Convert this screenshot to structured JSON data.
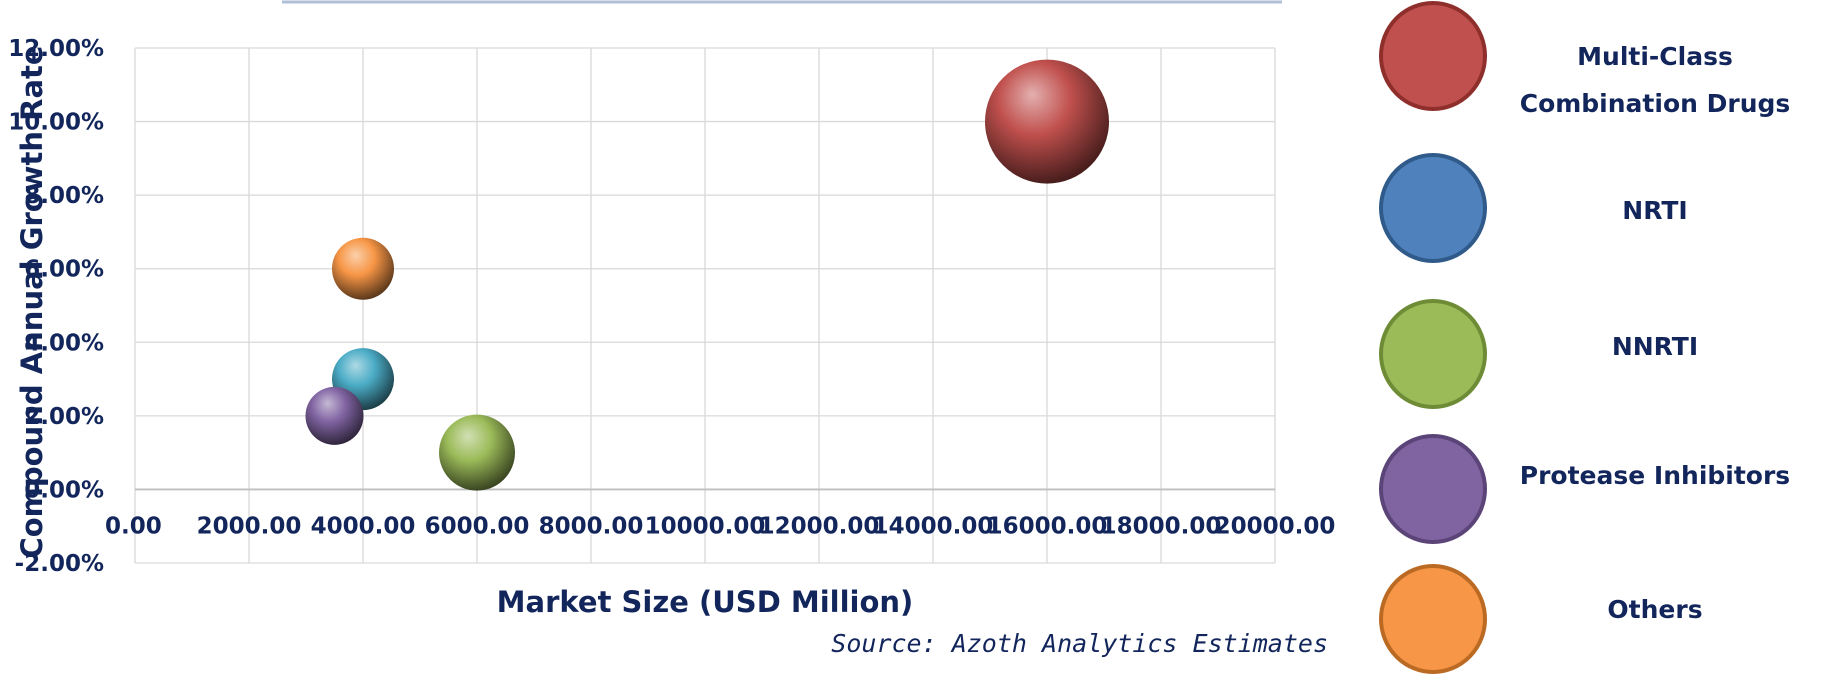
{
  "chart_data": {
    "type": "bubble",
    "xlabel": "Market Size (USD Million)",
    "ylabel": "Compound Annual Growth Rate",
    "xlim": [
      0,
      20000
    ],
    "ylim": [
      -0.02,
      0.12
    ],
    "x_ticks": [
      "0.00",
      "2000.00",
      "4000.00",
      "6000.00",
      "8000.00",
      "10000.00",
      "12000.00",
      "14000.00",
      "16000.00",
      "18000.00",
      "20000.00"
    ],
    "y_ticks": [
      "-2.00%",
      "0.00%",
      "2.00%",
      "4.00%",
      "6.00%",
      "8.00%",
      "10.00%",
      "12.00%"
    ],
    "grid": true,
    "legend_position": "right",
    "source": "Source: Azoth Analytics Estimates",
    "series": [
      {
        "name": "Multi-Class Combination Drugs",
        "x": 16000,
        "y": 0.1,
        "size": 16000,
        "color": "#c0504d"
      },
      {
        "name": "NRTI",
        "x": 4000,
        "y": 0.03,
        "size": 4000,
        "color": "#4bacc6"
      },
      {
        "name": "NNRTI",
        "x": 6000,
        "y": 0.01,
        "size": 6000,
        "color": "#9bbb59"
      },
      {
        "name": "Protease Inhibitors",
        "x": 3500,
        "y": 0.02,
        "size": 3500,
        "color": "#8064a2"
      },
      {
        "name": "Others",
        "x": 4000,
        "y": 0.06,
        "size": 4000,
        "color": "#f79646"
      }
    ],
    "legend": [
      {
        "name": "Multi-Class",
        "name2": "Combination Drugs",
        "color": "#c0504d",
        "stroke": "#8e2f2c"
      },
      {
        "name": "NRTI",
        "name2": "",
        "color": "#4f81bd",
        "stroke": "#2f5a8a"
      },
      {
        "name": "NNRTI",
        "name2": "",
        "color": "#9bbb59",
        "stroke": "#6e8c36"
      },
      {
        "name": "Protease Inhibitors",
        "name2": "",
        "color": "#8064a2",
        "stroke": "#5b4477"
      },
      {
        "name": "Others",
        "name2": "",
        "color": "#f79646",
        "stroke": "#bb6a24"
      }
    ]
  }
}
